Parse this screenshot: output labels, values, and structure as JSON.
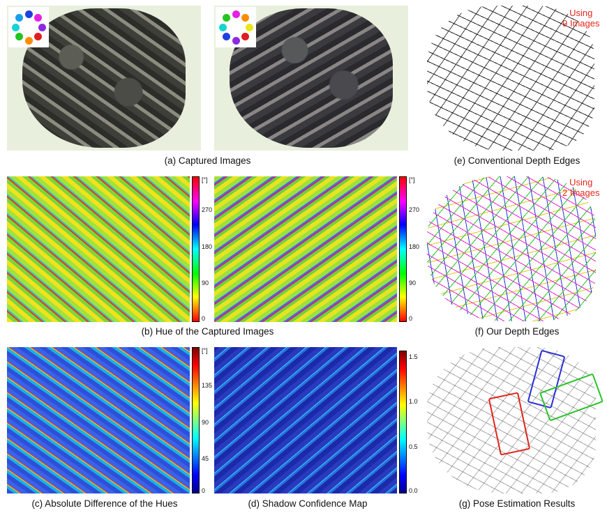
{
  "captions": {
    "a": "(a) Captured Images",
    "b": "(b) Hue of the Captured Images",
    "c": "(c) Absolute Difference of the Hues",
    "d": "(d) Shadow Confidence Map",
    "e": "(e) Conventional Depth Edges",
    "f": "(f) Our Depth Edges",
    "g": "(g) Pose Estimation Results"
  },
  "notes": {
    "e_line1": "Using",
    "e_line2": "9 Images",
    "f_line1": "Using",
    "f_line2": "2 Images"
  },
  "colorbars": {
    "hue": {
      "unit": "[°]",
      "ticks": [
        "0",
        "90",
        "180",
        "270"
      ]
    },
    "diff": {
      "unit": "[°]",
      "ticks": [
        "0",
        "45",
        "90",
        "135"
      ]
    },
    "confidence": {
      "ticks": [
        "0.0",
        "0.5",
        "1.0",
        "1.5"
      ]
    }
  },
  "light_patterns": {
    "left": [
      "#1f3fe0",
      "#e322e3",
      "#8a2be2",
      "#e01e1e",
      "#ff8c00",
      "#22c522",
      "#17d3d3",
      "#19a0e8"
    ],
    "right": [
      "#e322e3",
      "#ff8c00",
      "#e8e81a",
      "#e01e1e",
      "#8a2be2",
      "#1f3fe0",
      "#17d3d3",
      "#22c522"
    ]
  },
  "pose_colors": [
    "#e0241b",
    "#2a2fd6",
    "#27c427"
  ]
}
